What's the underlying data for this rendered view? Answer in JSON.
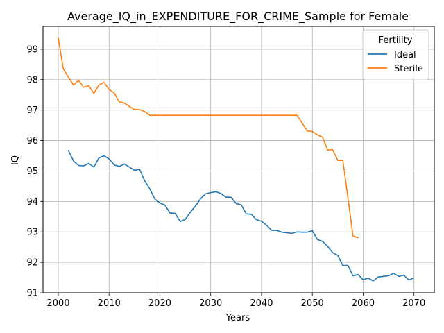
{
  "chart_data": {
    "type": "line",
    "title": "Average_IQ_in_EXPENDITURE_FOR_CRIME_Sample for Female",
    "xlabel": "Years",
    "ylabel": "IQ",
    "xlim": [
      1997,
      2074
    ],
    "ylim": [
      91,
      99.75
    ],
    "xticks": [
      2000,
      2010,
      2020,
      2030,
      2040,
      2050,
      2060,
      2070
    ],
    "yticks": [
      91,
      92,
      93,
      94,
      95,
      96,
      97,
      98,
      99
    ],
    "grid": true,
    "legend": {
      "title": "Fertility",
      "placement": "top-right"
    },
    "series": [
      {
        "name": "Ideal",
        "color": "#1f77b4",
        "x": [
          2002,
          2003,
          2004,
          2005,
          2006,
          2007,
          2008,
          2009,
          2010,
          2011,
          2012,
          2013,
          2014,
          2015,
          2016,
          2017,
          2018,
          2019,
          2020,
          2021,
          2022,
          2023,
          2024,
          2025,
          2026,
          2027,
          2028,
          2029,
          2030,
          2031,
          2032,
          2033,
          2034,
          2035,
          2036,
          2037,
          2038,
          2039,
          2040,
          2041,
          2042,
          2043,
          2044,
          2045,
          2046,
          2047,
          2048,
          2049,
          2050,
          2051,
          2052,
          2053,
          2054,
          2055,
          2056,
          2057,
          2058,
          2059,
          2060,
          2061,
          2062,
          2063,
          2064,
          2065,
          2066,
          2067,
          2068,
          2069,
          2070
        ],
        "y": [
          95.67,
          95.33,
          95.18,
          95.17,
          95.25,
          95.13,
          95.43,
          95.5,
          95.4,
          95.2,
          95.15,
          95.23,
          95.13,
          95.02,
          95.06,
          94.68,
          94.42,
          94.08,
          93.95,
          93.88,
          93.62,
          93.61,
          93.34,
          93.41,
          93.65,
          93.85,
          94.09,
          94.25,
          94.29,
          94.32,
          94.26,
          94.14,
          94.14,
          93.93,
          93.89,
          93.59,
          93.58,
          93.4,
          93.35,
          93.22,
          93.05,
          93.05,
          92.99,
          92.97,
          92.95,
          93.0,
          92.99,
          92.99,
          93.04,
          92.75,
          92.69,
          92.53,
          92.32,
          92.23,
          91.9,
          91.9,
          91.56,
          91.6,
          91.43,
          91.48,
          91.39,
          91.52,
          91.54,
          91.56,
          91.64,
          91.54,
          91.58,
          91.42,
          91.49
        ]
      },
      {
        "name": "Sterile",
        "color": "#ff7f0e",
        "x": [
          2000,
          2001,
          2002,
          2003,
          2004,
          2005,
          2006,
          2007,
          2008,
          2009,
          2010,
          2011,
          2012,
          2013,
          2014,
          2015,
          2016,
          2017,
          2018,
          2019,
          2020,
          2021,
          2022,
          2023,
          2024,
          2025,
          2026,
          2027,
          2028,
          2029,
          2030,
          2031,
          2032,
          2033,
          2034,
          2035,
          2036,
          2037,
          2038,
          2039,
          2040,
          2041,
          2042,
          2043,
          2044,
          2045,
          2046,
          2047,
          2048,
          2049,
          2050,
          2051,
          2052,
          2053,
          2054,
          2055,
          2056,
          2057,
          2058,
          2059
        ],
        "y": [
          99.37,
          98.35,
          98.08,
          97.82,
          97.98,
          97.75,
          97.8,
          97.55,
          97.82,
          97.91,
          97.68,
          97.56,
          97.27,
          97.23,
          97.12,
          97.02,
          97.02,
          96.95,
          96.83,
          96.83,
          96.83,
          96.83,
          96.83,
          96.83,
          96.83,
          96.83,
          96.83,
          96.83,
          96.83,
          96.83,
          96.83,
          96.83,
          96.83,
          96.83,
          96.83,
          96.83,
          96.83,
          96.83,
          96.83,
          96.83,
          96.83,
          96.83,
          96.83,
          96.83,
          96.83,
          96.83,
          96.83,
          96.83,
          96.57,
          96.32,
          96.3,
          96.19,
          96.11,
          95.69,
          95.7,
          95.35,
          95.35,
          94.13,
          92.86,
          92.81
        ]
      }
    ]
  }
}
